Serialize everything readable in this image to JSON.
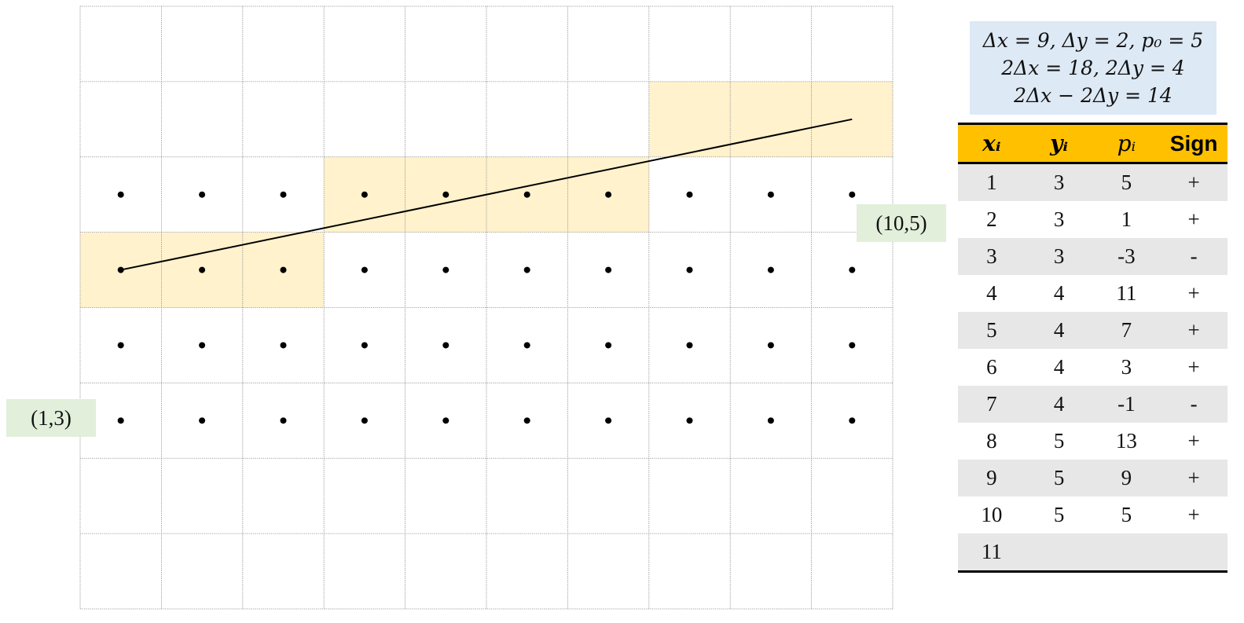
{
  "diagram": {
    "start_label": "(1,3)",
    "end_label": "(10,5)",
    "line": {
      "x1": 1,
      "y1": 3,
      "x2": 10,
      "y2": 5
    },
    "grid": {
      "columns": 10,
      "rows": 8,
      "dot_rows": [
        3,
        4,
        5,
        6
      ]
    },
    "colors": {
      "highlight": "#fff2cc",
      "label_bg": "#e2efda",
      "params_bg": "#dde9f5",
      "header_bg": "#ffc000",
      "stripe_bg": "#e7e7e7",
      "grid_line": "#999999"
    }
  },
  "params": {
    "line1": "Δx = 9, Δy = 2, p₀ = 5",
    "line2": "2Δx = 18, 2Δy = 4",
    "line3": "2Δx − 2Δy = 14"
  },
  "table": {
    "headers": [
      "xᵢ",
      "yᵢ",
      "pᵢ",
      "Sign"
    ],
    "rows": [
      [
        "1",
        "3",
        "5",
        "+"
      ],
      [
        "2",
        "3",
        "1",
        "+"
      ],
      [
        "3",
        "3",
        "-3",
        "-"
      ],
      [
        "4",
        "4",
        "11",
        "+"
      ],
      [
        "5",
        "4",
        "7",
        "+"
      ],
      [
        "6",
        "4",
        "3",
        "+"
      ],
      [
        "7",
        "4",
        "-1",
        "-"
      ],
      [
        "8",
        "5",
        "13",
        "+"
      ],
      [
        "9",
        "5",
        "9",
        "+"
      ],
      [
        "10",
        "5",
        "5",
        "+"
      ],
      [
        "11",
        "",
        "",
        ""
      ]
    ]
  }
}
